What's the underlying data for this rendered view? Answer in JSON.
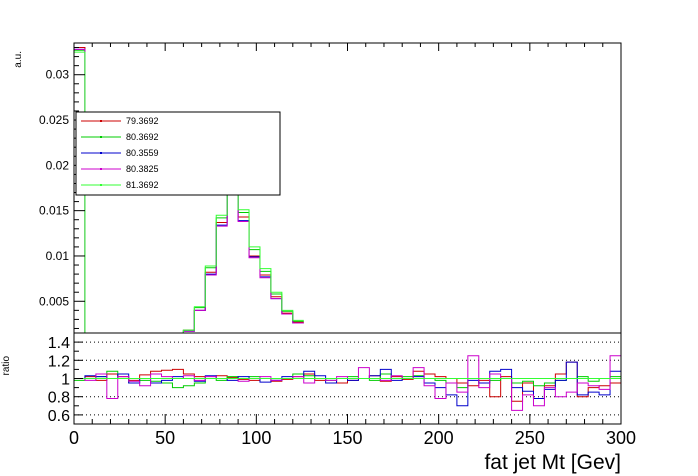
{
  "chart_data": [
    {
      "type": "line",
      "panel": "main",
      "ylabel": "a.u.",
      "xlim": [
        0,
        300
      ],
      "ylim": [
        0.0015,
        0.0335
      ],
      "yticks": [
        0.005,
        0.01,
        0.015,
        0.02,
        0.025,
        0.03
      ],
      "ytick_labels": [
        "0.005",
        "0.01",
        "0.015",
        "0.02",
        "0.025",
        "0.03"
      ],
      "bin_width": 6,
      "bin_edges": [
        0,
        6,
        12,
        18,
        24,
        30,
        36,
        42,
        48,
        54,
        60,
        66,
        72,
        78,
        84,
        90,
        96,
        102,
        108,
        114,
        120
      ],
      "legend_location": "upper-left",
      "series": [
        {
          "name": "79.3692",
          "color": "#cc0000",
          "values": [
            0.033,
            0.0008,
            0.0,
            0.0,
            0.0,
            0.0,
            0.0,
            0.0,
            0.0,
            0.0008,
            0.0018,
            0.004,
            0.0082,
            0.0137,
            0.0172,
            0.0143,
            0.01,
            0.0079,
            0.0055,
            0.0037,
            0.0027
          ]
        },
        {
          "name": "80.3692",
          "color": "#00cc00",
          "values": [
            0.0327,
            0.0008,
            0.0,
            0.0,
            0.0,
            0.0,
            0.0,
            0.0,
            0.0,
            0.0008,
            0.0018,
            0.0043,
            0.0087,
            0.0142,
            0.0176,
            0.0148,
            0.0107,
            0.0083,
            0.0058,
            0.0039,
            0.0028
          ]
        },
        {
          "name": "80.3559",
          "color": "#0000cc",
          "values": [
            0.0328,
            0.0008,
            0.0,
            0.0,
            0.0,
            0.0,
            0.0,
            0.0,
            0.0,
            0.0008,
            0.0017,
            0.004,
            0.008,
            0.0134,
            0.017,
            0.0139,
            0.0099,
            0.0077,
            0.0053,
            0.0036,
            0.0026
          ]
        },
        {
          "name": "80.3825",
          "color": "#cc00cc",
          "values": [
            0.0328,
            0.0008,
            0.0,
            0.0,
            0.0,
            0.0,
            0.0,
            0.0,
            0.0,
            0.0008,
            0.0017,
            0.004,
            0.0079,
            0.0133,
            0.0169,
            0.0138,
            0.0098,
            0.0076,
            0.0053,
            0.0036,
            0.0026
          ]
        },
        {
          "name": "81.3692",
          "color": "#33ff33",
          "values": [
            0.0325,
            0.0008,
            0.0,
            0.0,
            0.0,
            0.0,
            0.0,
            0.0,
            0.0,
            0.0008,
            0.0018,
            0.0044,
            0.0089,
            0.0145,
            0.0178,
            0.0151,
            0.011,
            0.0086,
            0.006,
            0.004,
            0.0029
          ]
        }
      ]
    },
    {
      "type": "line",
      "panel": "ratio",
      "ylabel": "ratio",
      "xlabel": "fat jet Mt [Gev]",
      "xlim": [
        0,
        300
      ],
      "xticks": [
        0,
        50,
        100,
        150,
        200,
        250,
        300
      ],
      "xtick_labels": [
        "0",
        "50",
        "100",
        "150",
        "200",
        "250",
        "300"
      ],
      "ylim": [
        0.5,
        1.5
      ],
      "yticks": [
        0.6,
        0.8,
        1.0,
        1.2,
        1.4
      ],
      "ytick_labels": [
        "0.6",
        "0.8",
        "1",
        "1.2",
        "1.4"
      ],
      "grid": "dotted-horizontal",
      "bin_width": 6,
      "series": [
        {
          "name": "79.3692",
          "color": "#cc0000",
          "values": [
            1.0,
            1.02,
            0.98,
            1.05,
            1.02,
            0.98,
            1.04,
            1.08,
            1.09,
            1.1,
            1.05,
            1.02,
            1.0,
            1.03,
            1.01,
            0.99,
            0.98,
            1.0,
            0.97,
            0.99,
            1.02,
            1.05,
            0.98,
            1.0,
            0.95,
            0.98,
            1.0,
            1.03,
            0.97,
            1.02,
            0.99,
            1.08,
            1.05,
            1.02,
            1.0,
            0.95,
            0.92,
            0.98,
            0.8,
            1.02,
            0.75,
            0.95,
            0.78,
            0.92,
            1.05,
            1.18,
            0.8,
            0.9,
            0.92,
            0.95
          ]
        },
        {
          "name": "80.3692",
          "color": "#00cc00",
          "values": [
            0.98,
            1.0,
            1.02,
            1.08,
            1.0,
            0.95,
            0.98,
            0.97,
            0.95,
            0.9,
            0.92,
            0.95,
            1.0,
            0.98,
            1.02,
            1.0,
            1.02,
            1.0,
            0.98,
            1.0,
            1.05,
            1.03,
            1.0,
            0.98,
            1.0,
            1.02,
            1.0,
            0.98,
            1.05,
            1.0,
            1.02,
            1.03,
            1.0,
            0.98,
            0.95,
            0.9,
            1.0,
            0.95,
            0.98,
            1.0,
            0.95,
            0.97,
            0.92,
            0.95,
            0.98,
            1.0,
            1.02,
            0.97,
            1.0,
            1.02
          ]
        },
        {
          "name": "80.3559",
          "color": "#0000cc",
          "values": [
            1.0,
            1.03,
            1.02,
            1.0,
            1.05,
            0.95,
            1.0,
            0.95,
            0.98,
            1.02,
            1.0,
            0.97,
            1.03,
            1.0,
            0.98,
            1.02,
            1.0,
            0.96,
            0.98,
            1.02,
            1.0,
            1.08,
            1.03,
            0.95,
            1.0,
            0.98,
            1.0,
            1.03,
            1.1,
            0.98,
            1.0,
            1.02,
            0.95,
            0.9,
            0.82,
            0.7,
            0.98,
            0.95,
            1.08,
            1.1,
            0.9,
            0.86,
            0.78,
            0.88,
            0.98,
            1.18,
            0.82,
            0.85,
            0.82,
            1.08
          ]
        },
        {
          "name": "80.3825",
          "color": "#cc00cc",
          "values": [
            1.0,
            0.98,
            1.05,
            0.78,
            1.02,
            0.97,
            0.92,
            1.05,
            1.02,
            1.0,
            1.03,
            0.98,
            1.02,
            1.0,
            1.0,
            0.97,
            1.0,
            1.02,
            0.98,
            1.0,
            1.02,
            0.95,
            1.0,
            0.98,
            1.02,
            1.0,
            1.12,
            1.0,
            0.98,
            1.03,
            1.0,
            1.12,
            0.92,
            0.78,
            0.95,
            0.85,
            1.25,
            0.9,
            1.05,
            1.0,
            0.65,
            0.82,
            0.7,
            0.9,
            0.8,
            0.85,
            0.95,
            0.92,
            0.88,
            1.25
          ]
        },
        {
          "name": "81.3692",
          "color": "#33ff33",
          "values": [
            1.0,
            1.0,
            1.0,
            1.0,
            1.0,
            1.0,
            1.0,
            1.0,
            1.0,
            1.0,
            1.0,
            1.0,
            1.0,
            1.0,
            1.0,
            1.0,
            1.0,
            1.0,
            1.0,
            1.0,
            1.0,
            1.0,
            1.0,
            1.0,
            1.0,
            1.0,
            1.0,
            1.0,
            1.0,
            1.0,
            1.0,
            1.0,
            1.0,
            1.0,
            1.0,
            1.0,
            1.0,
            1.0,
            1.0,
            1.0,
            1.0,
            1.0,
            1.0,
            1.0,
            1.0,
            1.0,
            1.0,
            1.0,
            1.0,
            1.0
          ]
        }
      ]
    }
  ]
}
